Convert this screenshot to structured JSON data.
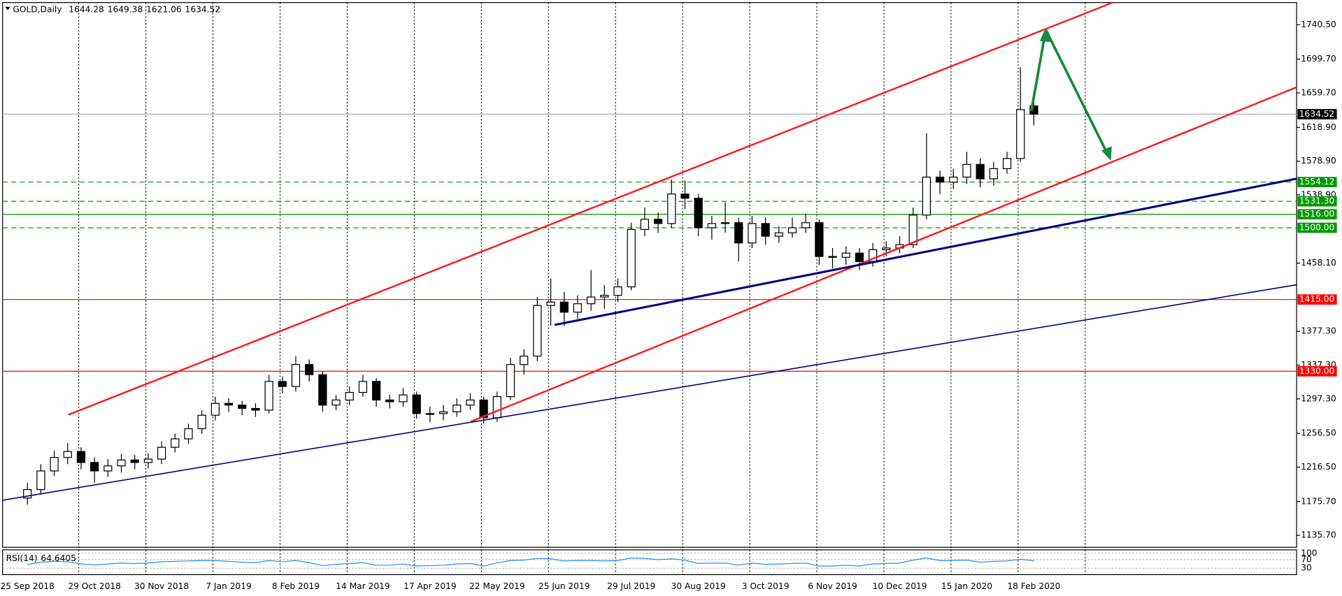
{
  "chart_data": {
    "type": "candlestick",
    "title": "GOLD,Daily",
    "last_ohlc": [
      1644.28,
      1649.38,
      1621.06,
      1634.52
    ],
    "categories": [
      "25 Sep 2018",
      null,
      null,
      null,
      null,
      "29 Oct 2018",
      null,
      null,
      null,
      null,
      "30 Nov 2018",
      null,
      null,
      null,
      null,
      "7 Jan 2019",
      null,
      null,
      null,
      null,
      "8 Feb 2019",
      null,
      null,
      null,
      null,
      "14 Mar 2019",
      null,
      null,
      null,
      null,
      "17 Apr 2019",
      null,
      null,
      null,
      null,
      "22 May 2019",
      null,
      null,
      null,
      null,
      "25 Jun 2019",
      null,
      null,
      null,
      null,
      "29 Jul 2019",
      null,
      null,
      null,
      null,
      "30 Aug 2019",
      null,
      null,
      null,
      null,
      "3 Oct 2019",
      null,
      null,
      null,
      null,
      "6 Nov 2019",
      null,
      null,
      null,
      null,
      "10 Dec 2019",
      null,
      null,
      null,
      null,
      "15 Jan 2020",
      null,
      null,
      null,
      null,
      "18 Feb 2020"
    ],
    "open": [
      1180,
      1190,
      1212,
      1228,
      1235,
      1222,
      1212,
      1218,
      1225,
      1222,
      1226,
      1240,
      1250,
      1262,
      1278,
      1292,
      1290,
      1286,
      1284,
      1318,
      1312,
      1338,
      1326,
      1290,
      1296,
      1305,
      1318,
      1296,
      1294,
      1302,
      1280,
      1280,
      1282,
      1290,
      1296,
      1275,
      1300,
      1338,
      1348,
      1408,
      1412,
      1400,
      1410,
      1418,
      1420,
      1430,
      1498,
      1510,
      1505,
      1540,
      1535,
      1500,
      1505,
      1506,
      1482,
      1505,
      1490,
      1494,
      1500,
      1506,
      1466,
      1465,
      1470,
      1460,
      1474,
      1476,
      1480,
      1515,
      1560,
      1554,
      1560,
      1575,
      1558,
      1570,
      1582,
      1644.28
    ],
    "high": [
      1198,
      1220,
      1236,
      1245,
      1240,
      1228,
      1226,
      1232,
      1231,
      1233,
      1247,
      1256,
      1268,
      1284,
      1300,
      1298,
      1295,
      1292,
      1326,
      1324,
      1348,
      1344,
      1330,
      1302,
      1312,
      1326,
      1322,
      1302,
      1310,
      1306,
      1288,
      1290,
      1298,
      1304,
      1300,
      1306,
      1346,
      1356,
      1418,
      1440,
      1424,
      1420,
      1450,
      1432,
      1440,
      1506,
      1524,
      1518,
      1557,
      1556,
      1540,
      1514,
      1530,
      1512,
      1514,
      1512,
      1502,
      1512,
      1516,
      1510,
      1476,
      1478,
      1476,
      1482,
      1484,
      1490,
      1524,
      1612,
      1568,
      1570,
      1590,
      1582,
      1578,
      1590,
      1690,
      1649.38
    ],
    "low": [
      1172,
      1184,
      1206,
      1220,
      1214,
      1198,
      1205,
      1210,
      1214,
      1215,
      1220,
      1234,
      1244,
      1256,
      1272,
      1282,
      1278,
      1276,
      1280,
      1304,
      1306,
      1318,
      1282,
      1284,
      1290,
      1300,
      1288,
      1286,
      1288,
      1274,
      1270,
      1272,
      1276,
      1284,
      1268,
      1270,
      1296,
      1326,
      1342,
      1384,
      1384,
      1392,
      1402,
      1404,
      1412,
      1426,
      1490,
      1494,
      1500,
      1522,
      1490,
      1486,
      1494,
      1460,
      1476,
      1480,
      1482,
      1488,
      1494,
      1456,
      1452,
      1456,
      1450,
      1454,
      1466,
      1470,
      1476,
      1510,
      1540,
      1546,
      1552,
      1548,
      1550,
      1564,
      1578,
      1621.06
    ],
    "close": [
      1190,
      1212,
      1228,
      1235,
      1222,
      1212,
      1218,
      1225,
      1222,
      1226,
      1240,
      1250,
      1262,
      1278,
      1292,
      1290,
      1286,
      1284,
      1318,
      1312,
      1338,
      1326,
      1290,
      1296,
      1305,
      1318,
      1296,
      1294,
      1302,
      1280,
      1280,
      1282,
      1290,
      1296,
      1275,
      1300,
      1338,
      1348,
      1408,
      1412,
      1400,
      1410,
      1418,
      1420,
      1430,
      1498,
      1510,
      1505,
      1540,
      1535,
      1500,
      1505,
      1506,
      1482,
      1505,
      1490,
      1494,
      1500,
      1506,
      1466,
      1465,
      1470,
      1460,
      1474,
      1476,
      1480,
      1515,
      1560,
      1554,
      1560,
      1575,
      1558,
      1570,
      1582,
      1640,
      1634.52
    ],
    "ylim": [
      1121.6,
      1766.7
    ],
    "yticks": [
      {
        "value": 1740.5,
        "label": "1740.50"
      },
      {
        "value": 1699.7,
        "label": "1699.70"
      },
      {
        "value": 1659.7,
        "label": "1659.70"
      },
      {
        "value": 1618.9,
        "label": "1618.90"
      },
      {
        "value": 1578.9,
        "label": "1578.90"
      },
      {
        "value": 1538.9,
        "label": "1538.90"
      },
      {
        "value": 1458.1,
        "label": "1458.10"
      },
      {
        "value": 1377.3,
        "label": "1377.30"
      },
      {
        "value": 1337.3,
        "label": "1337.30"
      },
      {
        "value": 1297.3,
        "label": "1297.30"
      },
      {
        "value": 1256.5,
        "label": "1256.50"
      },
      {
        "value": 1216.5,
        "label": "1216.50"
      },
      {
        "value": 1175.7,
        "label": "1175.70"
      },
      {
        "value": 1135.7,
        "label": "1135.70"
      }
    ],
    "grid": true,
    "levels": [
      {
        "value": 1634.52,
        "color": "#000000",
        "style": "solid"
      },
      {
        "value": 1554.12,
        "color": "#009900",
        "style": "dashed"
      },
      {
        "value": 1531.3,
        "label": "1531.30",
        "color": "#009900",
        "style": "dashed"
      },
      {
        "value": 1516,
        "label": "1516.00",
        "color": "#009900",
        "style": "solid"
      },
      {
        "value": 1500,
        "label": "1500.00",
        "color": "#009900",
        "style": "dashed"
      },
      {
        "value": 1415,
        "label": "1415.00",
        "color": "#ff0000",
        "style": "solid"
      },
      {
        "value": 1330,
        "label": "1330.00",
        "color": "#ff0000",
        "style": "solid"
      }
    ],
    "rsi": {
      "name": "RSI(14)",
      "value": 64.6405,
      "color": "#1e90ff",
      "ylim": [
        0,
        100
      ],
      "yticks": [
        100,
        70,
        30
      ],
      "values": [
        48,
        58,
        62,
        60,
        50,
        45,
        50,
        54,
        52,
        54,
        60,
        62,
        64,
        66,
        66,
        62,
        58,
        56,
        66,
        60,
        66,
        56,
        42,
        48,
        52,
        56,
        44,
        44,
        50,
        40,
        42,
        44,
        50,
        52,
        40,
        55,
        66,
        68,
        76,
        74,
        64,
        66,
        66,
        64,
        66,
        78,
        76,
        70,
        74,
        68,
        52,
        54,
        54,
        44,
        54,
        48,
        50,
        52,
        54,
        40,
        40,
        44,
        40,
        50,
        52,
        54,
        68,
        78,
        66,
        66,
        68,
        58,
        62,
        64,
        72,
        64.6
      ]
    }
  }
}
